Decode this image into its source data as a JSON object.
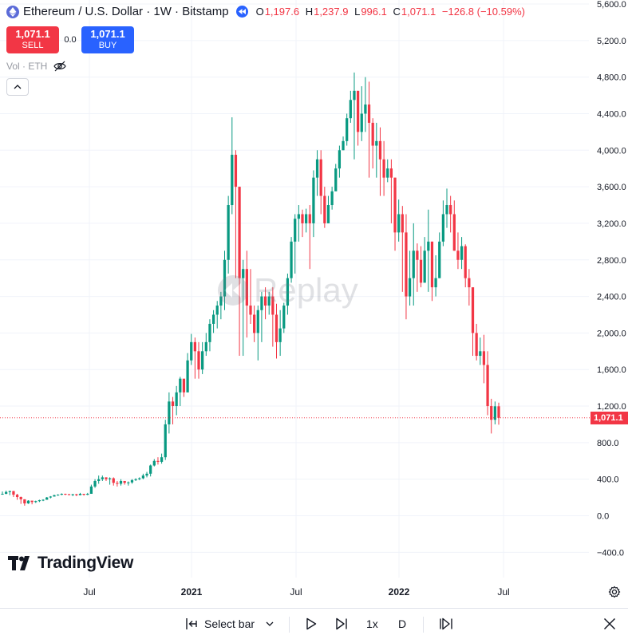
{
  "header": {
    "title": "Ethereum / U.S. Dollar · 1W · Bitstamp",
    "ohlc": [
      {
        "k": "O",
        "v": "1,197.6"
      },
      {
        "k": "H",
        "v": "1,237.9"
      },
      {
        "k": "L",
        "v": "996.1"
      },
      {
        "k": "C",
        "v": "1,071.1"
      },
      {
        "k": "",
        "v": "−126.8 (−10.59%)"
      }
    ]
  },
  "trade": {
    "sell_price": "1,071.1",
    "sell_label": "SELL",
    "spread": "0.0",
    "buy_price": "1,071.1",
    "buy_label": "BUY"
  },
  "volume_label": "Vol · ETH",
  "watermark": "Replay",
  "logo_text": "TradingView",
  "current_price_label": "1,071.1",
  "colors": {
    "up": "#089981",
    "down": "#f23645",
    "accent": "#2962ff"
  },
  "chart_data": {
    "type": "candlestick",
    "symbol": "ETHUSD",
    "interval": "1W",
    "ylim": [
      -400,
      5600
    ],
    "y_ticks": [
      -400,
      0,
      400,
      800,
      1200,
      1600,
      2000,
      2400,
      2800,
      3200,
      3600,
      4000,
      4400,
      4800,
      5200,
      5600
    ],
    "y_tick_labels": [
      "−400.0",
      "0.0",
      "400.0",
      "800.0",
      "1,200.0",
      "1,600.0",
      "2,000.0",
      "2,400.0",
      "2,800.0",
      "3,200.0",
      "3,600.0",
      "4,000.0",
      "4,400.0",
      "4,800.0",
      "5,200.0",
      "5,600.0"
    ],
    "x_labels": [
      "Jul",
      "2021",
      "Jul",
      "2022",
      "Jul"
    ],
    "current_price": 1071.1,
    "closes": [
      240,
      260,
      270,
      230,
      205,
      180,
      135,
      165,
      150,
      160,
      170,
      175,
      200,
      210,
      225,
      230,
      240,
      235,
      230,
      235,
      225,
      240,
      230,
      240,
      320,
      380,
      400,
      420,
      400,
      410,
      360,
      350,
      380,
      360,
      365,
      390,
      400,
      410,
      440,
      460,
      550,
      600,
      590,
      640,
      1000,
      1250,
      1200,
      1350,
      1500,
      1350,
      1700,
      1900,
      1800,
      1600,
      1800,
      1900,
      2100,
      2200,
      2300,
      2400,
      2800,
      3400,
      3950,
      3600,
      2600,
      2700,
      2300,
      2200,
      2000,
      2250,
      2400,
      2300,
      2400,
      2200,
      1900,
      2050,
      2300,
      2600,
      3000,
      3250,
      3300,
      3200,
      3300,
      3200,
      3700,
      3900,
      3500,
      3200,
      3400,
      3550,
      3800,
      4000,
      4100,
      4350,
      4550,
      4650,
      4200,
      4400,
      4500,
      4300,
      4050,
      4100,
      3900,
      3700,
      3800,
      3700,
      3100,
      3300,
      3100,
      2400,
      2600,
      2900,
      2800,
      2550,
      2900,
      3000,
      2500,
      2600,
      3000,
      3300,
      3400,
      3300,
      2900,
      2800,
      2950,
      2600,
      2500,
      2000,
      1750,
      1800,
      1650,
      1200,
      1050,
      1197.6,
      1071.1
    ],
    "highs": [
      265,
      275,
      275,
      272,
      240,
      210,
      180,
      170,
      165,
      165,
      175,
      180,
      205,
      215,
      230,
      235,
      245,
      242,
      240,
      240,
      240,
      250,
      240,
      250,
      340,
      400,
      440,
      440,
      420,
      420,
      420,
      380,
      400,
      380,
      375,
      400,
      410,
      420,
      460,
      480,
      560,
      620,
      640,
      680,
      1050,
      1350,
      1300,
      1420,
      1520,
      1480,
      1780,
      1990,
      1950,
      1900,
      1900,
      2000,
      2150,
      2250,
      2350,
      2450,
      2900,
      3500,
      4360,
      4000,
      3600,
      2800,
      2900,
      2700,
      2300,
      2300,
      2450,
      2500,
      2450,
      2500,
      2320,
      2250,
      2330,
      2650,
      3050,
      3300,
      3400,
      3350,
      3360,
      3400,
      3780,
      4000,
      4000,
      3600,
      3500,
      3600,
      3850,
      4050,
      4150,
      4400,
      4650,
      4850,
      4650,
      4700,
      4800,
      4750,
      4350,
      4300,
      4250,
      4100,
      3900,
      3900,
      3700,
      3460,
      3390,
      3300,
      2900,
      3200,
      2980,
      2950,
      3050,
      3350,
      3000,
      2850,
      3100,
      3450,
      3580,
      3500,
      3450,
      3100,
      3050,
      2970,
      2700,
      2200,
      2100,
      1950,
      1980,
      1800,
      1280,
      1250,
      1237.9
    ],
    "lows": [
      230,
      235,
      225,
      205,
      175,
      130,
      110,
      130,
      125,
      140,
      150,
      160,
      175,
      190,
      210,
      220,
      225,
      225,
      225,
      215,
      215,
      225,
      220,
      225,
      240,
      305,
      350,
      380,
      380,
      340,
      330,
      320,
      330,
      340,
      330,
      350,
      380,
      390,
      400,
      420,
      430,
      540,
      560,
      570,
      610,
      900,
      1000,
      1100,
      1200,
      1300,
      1350,
      1650,
      1500,
      1500,
      1550,
      1750,
      1800,
      2000,
      2050,
      2150,
      2250,
      2650,
      3300,
      2600,
      1750,
      1750,
      1950,
      2100,
      1900,
      1700,
      1900,
      2150,
      2200,
      1850,
      1720,
      1750,
      2000,
      2200,
      2550,
      2650,
      3000,
      3050,
      3100,
      2700,
      3050,
      3500,
      3300,
      3150,
      3300,
      3350,
      3600,
      3700,
      4000,
      4050,
      4300,
      3900,
      4050,
      4100,
      4200,
      3700,
      3800,
      3700,
      3500,
      3500,
      3650,
      3200,
      2900,
      3000,
      2450,
      2150,
      2300,
      2300,
      2450,
      2500,
      2550,
      2450,
      2350,
      2400,
      2600,
      2950,
      3150,
      3100,
      2900,
      2700,
      2700,
      2500,
      2300,
      1750,
      1700,
      1650,
      1450,
      1100,
      900,
      1000,
      996.1
    ]
  },
  "bottom_bar": {
    "select_bar_label": "Select bar",
    "speed_label": "1x",
    "interval_label": "D"
  }
}
